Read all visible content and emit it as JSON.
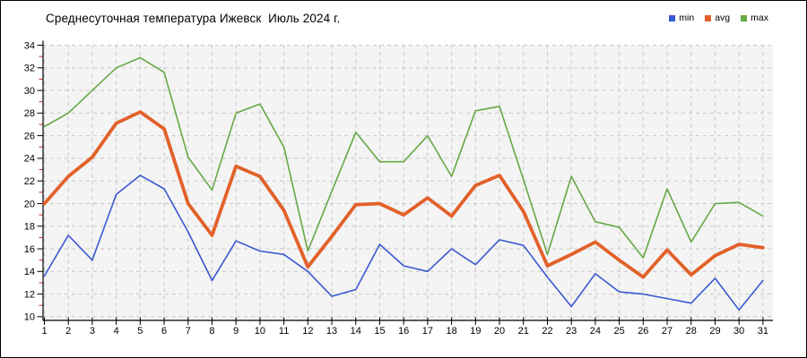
{
  "title": "Среднесуточная температура Ижевск  Июль 2024 г.",
  "legend": {
    "items": [
      {
        "label": "min",
        "color": "#3a58d0"
      },
      {
        "label": "avg",
        "color": "#e2612a"
      },
      {
        "label": "max",
        "color": "#66a845"
      }
    ]
  },
  "chart_data": {
    "type": "line",
    "title": "Среднесуточная температура Ижевск  Июль 2024 г.",
    "xlabel": "",
    "ylabel": "",
    "x": [
      1,
      2,
      3,
      4,
      5,
      6,
      7,
      8,
      9,
      10,
      11,
      12,
      13,
      14,
      15,
      16,
      17,
      18,
      19,
      20,
      21,
      22,
      23,
      24,
      25,
      26,
      27,
      28,
      29,
      30,
      31
    ],
    "x_tick_labels": [
      "1",
      "2",
      "3",
      "4",
      "5",
      "6",
      "7",
      "8",
      "9",
      "10",
      "11",
      "12",
      "13",
      "14",
      "15",
      "16",
      "17",
      "18",
      "19",
      "20",
      "21",
      "22",
      "23",
      "24",
      "25",
      "26",
      "27",
      "28",
      "29",
      "30",
      "31"
    ],
    "y_tick_labels": [
      "10",
      "12",
      "14",
      "16",
      "18",
      "20",
      "22",
      "24",
      "26",
      "28",
      "30",
      "32",
      "34"
    ],
    "ylim": [
      10,
      34
    ],
    "ytick_step": 2,
    "grid": true,
    "legend_position": "top-right",
    "series": [
      {
        "name": "max",
        "color": "#66a845",
        "width": 1.6,
        "values": [
          26.8,
          28.0,
          30.0,
          32.0,
          32.9,
          31.6,
          24.1,
          21.2,
          28.0,
          28.8,
          25.0,
          15.8,
          21.1,
          26.3,
          23.7,
          23.7,
          26.0,
          22.4,
          28.2,
          28.6,
          22.1,
          15.5,
          22.4,
          18.4,
          17.9,
          15.2,
          21.3,
          16.6,
          20.0,
          20.1,
          18.9
        ]
      },
      {
        "name": "min",
        "color": "#3a58d0",
        "width": 1.6,
        "values": [
          13.6,
          17.2,
          15.0,
          20.8,
          22.5,
          21.3,
          17.5,
          13.2,
          16.7,
          15.8,
          15.5,
          14.0,
          11.8,
          12.4,
          16.4,
          14.5,
          14.0,
          16.0,
          14.6,
          16.8,
          16.3,
          13.5,
          10.9,
          13.8,
          12.2,
          12.0,
          11.6,
          11.2,
          13.4,
          10.6,
          13.2
        ]
      },
      {
        "name": "avg",
        "color": "#e2612a",
        "width": 3.8,
        "values": [
          20.0,
          22.4,
          24.1,
          27.1,
          28.1,
          26.6,
          20.0,
          17.2,
          23.3,
          22.4,
          19.4,
          14.4,
          17.1,
          19.9,
          20.0,
          19.0,
          20.5,
          18.9,
          21.6,
          22.5,
          19.3,
          14.5,
          15.5,
          16.6,
          15.0,
          13.5,
          15.9,
          13.7,
          15.4,
          16.4,
          16.1
        ]
      }
    ]
  },
  "colors": {
    "plot_bg": "#f4f4f4",
    "grid": "#c8c8c8",
    "axis": "#000000",
    "minor_tick": "#cc2820",
    "tick_label": "#000000",
    "frame_border": "#000000"
  }
}
